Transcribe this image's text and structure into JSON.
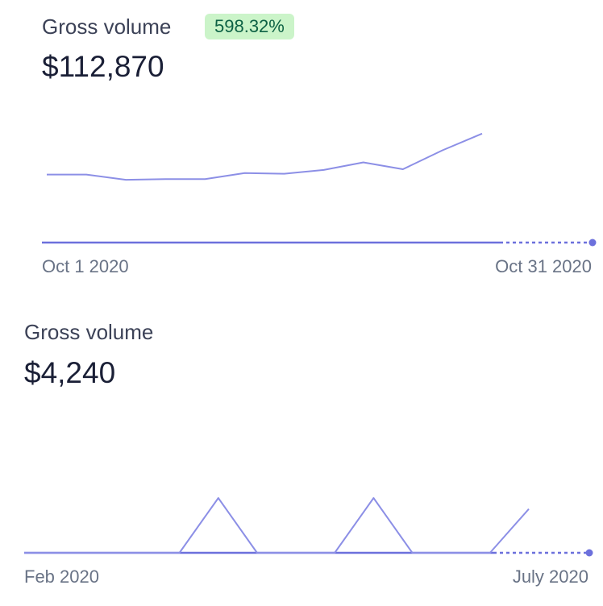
{
  "chart_data": [
    {
      "type": "line",
      "title": "Gross volume",
      "value": "$112,870",
      "badge": "598.32%",
      "x_start_label": "Oct 1 2020",
      "x_end_label": "Oct 31 2020",
      "series": [
        {
          "values": [
            3800,
            3800,
            3450,
            3500,
            3500,
            3900,
            3850,
            4100,
            4600,
            4150,
            5400,
            6500
          ]
        }
      ],
      "ylim": [
        0,
        10000
      ],
      "grid": false,
      "colors": {
        "line": "#8c8fe6",
        "axis": "#6c70dc",
        "badge_bg": "#cbf4c9",
        "badge_text": "#0e6245"
      }
    },
    {
      "type": "line",
      "title": "Gross volume",
      "value": "$4,240",
      "x_start_label": "Feb 2020",
      "x_end_label": "July 2020",
      "series": [
        {
          "values": [
            0,
            0,
            0,
            0,
            0,
            1000,
            0,
            0,
            0,
            1000,
            0,
            0,
            0,
            800
          ]
        }
      ],
      "ylim": [
        0,
        1000
      ],
      "grid": false,
      "colors": {
        "line": "#8c8fe6",
        "axis": "#6c70dc"
      }
    }
  ]
}
